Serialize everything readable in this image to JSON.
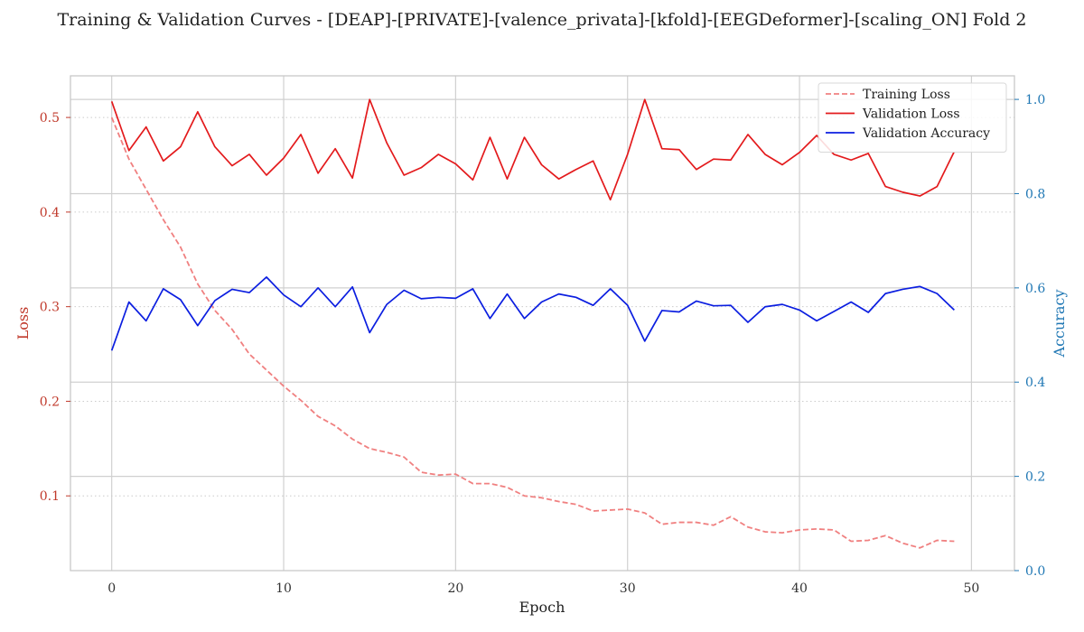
{
  "chart_data": {
    "type": "line",
    "title": "Training & Validation Curves - [DEAP]-[PRIVATE]-[valence_privata]-[kfold]-[EEGDeformer]-[scaling_ON] Fold 2",
    "xlabel": "Epoch",
    "ylabel_left": "Loss",
    "ylabel_right": "Accuracy",
    "xlim": [
      -2.4,
      52.5
    ],
    "ylim_left": [
      0.021,
      0.544
    ],
    "ylim_right": [
      0.0,
      1.05
    ],
    "x_ticks": [
      0,
      10,
      20,
      30,
      40,
      50
    ],
    "y_left_ticks": [
      0.1,
      0.2,
      0.3,
      0.4,
      0.5
    ],
    "y_right_ticks": [
      0.0,
      0.2,
      0.4,
      0.6,
      0.8,
      1.0
    ],
    "grid": true,
    "legend_position": "top-right",
    "colors": {
      "left_axis": "#c0392b",
      "right_axis": "#1f77b4"
    },
    "x": [
      0,
      1,
      2,
      3,
      4,
      5,
      6,
      7,
      8,
      9,
      10,
      11,
      12,
      13,
      14,
      15,
      16,
      17,
      18,
      19,
      20,
      21,
      22,
      23,
      24,
      25,
      26,
      27,
      28,
      29,
      30,
      31,
      32,
      33,
      34,
      35,
      36,
      37,
      38,
      39,
      40,
      41,
      42,
      43,
      44,
      45,
      46,
      47,
      48,
      49
    ],
    "series": [
      {
        "name": "Training Loss",
        "axis": "left",
        "color": "#f08080",
        "dash": true,
        "values": [
          0.5,
          0.456,
          0.424,
          0.392,
          0.363,
          0.324,
          0.296,
          0.276,
          0.25,
          0.233,
          0.216,
          0.201,
          0.184,
          0.174,
          0.16,
          0.15,
          0.146,
          0.141,
          0.125,
          0.122,
          0.123,
          0.113,
          0.113,
          0.109,
          0.1,
          0.098,
          0.094,
          0.091,
          0.084,
          0.085,
          0.086,
          0.082,
          0.07,
          0.072,
          0.072,
          0.069,
          0.078,
          0.067,
          0.062,
          0.061,
          0.064,
          0.065,
          0.064,
          0.052,
          0.053,
          0.058,
          0.05,
          0.045,
          0.053,
          0.052
        ]
      },
      {
        "name": "Validation Loss",
        "axis": "left",
        "color": "#e31a1c",
        "dash": false,
        "values": [
          0.517,
          0.465,
          0.49,
          0.454,
          0.469,
          0.506,
          0.469,
          0.449,
          0.461,
          0.439,
          0.457,
          0.482,
          0.441,
          0.467,
          0.436,
          0.519,
          0.473,
          0.439,
          0.447,
          0.461,
          0.451,
          0.434,
          0.479,
          0.435,
          0.479,
          0.45,
          0.435,
          0.445,
          0.454,
          0.413,
          0.461,
          0.519,
          0.467,
          0.466,
          0.445,
          0.456,
          0.455,
          0.482,
          0.461,
          0.45,
          0.463,
          0.481,
          0.461,
          0.455,
          0.462,
          0.427,
          0.421,
          0.417,
          0.427,
          0.464
        ]
      },
      {
        "name": "Validation Accuracy",
        "axis": "right",
        "color": "#0b1ee0",
        "dash": false,
        "values": [
          0.467,
          0.57,
          0.53,
          0.598,
          0.575,
          0.52,
          0.573,
          0.597,
          0.59,
          0.623,
          0.585,
          0.56,
          0.6,
          0.56,
          0.602,
          0.505,
          0.565,
          0.595,
          0.577,
          0.58,
          0.578,
          0.598,
          0.535,
          0.587,
          0.535,
          0.57,
          0.587,
          0.58,
          0.563,
          0.598,
          0.563,
          0.487,
          0.552,
          0.549,
          0.572,
          0.562,
          0.563,
          0.527,
          0.56,
          0.565,
          0.553,
          0.53,
          0.55,
          0.57,
          0.548,
          0.588,
          0.597,
          0.603,
          0.588,
          0.553
        ]
      }
    ]
  }
}
